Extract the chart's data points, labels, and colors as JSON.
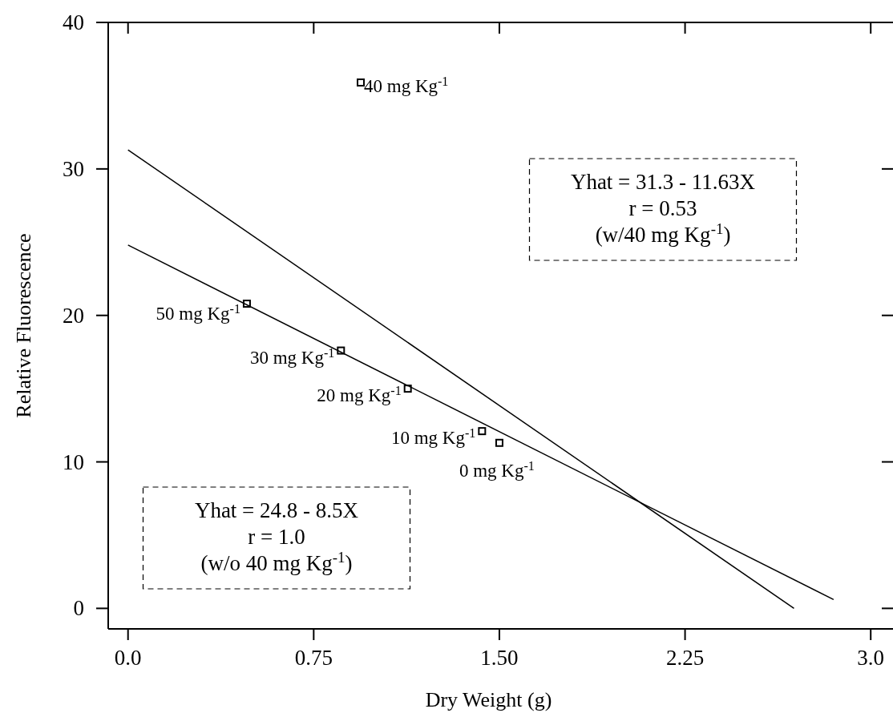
{
  "chart_data": {
    "type": "scatter",
    "xlabel": "Dry Weight (g)",
    "ylabel": "Relative Fluorescence",
    "xlim": [
      -0.08,
      3.09
    ],
    "ylim": [
      -1.4,
      40
    ],
    "xticks": [
      {
        "value": 0,
        "label": "0.0"
      },
      0.75,
      {
        "value": 1.5,
        "label": "1.50"
      },
      2.25,
      {
        "value": 3,
        "label": "3.0"
      }
    ],
    "yticks": [
      0,
      10,
      20,
      30,
      40
    ],
    "grid": false,
    "marker": "square",
    "series": [
      {
        "color": "#000000",
        "x": [
          0.48,
          0.86,
          1.13,
          1.43,
          1.5,
          0.94
        ],
        "values": [
          20.8,
          17.6,
          15.0,
          12.1,
          11.3,
          35.9
        ]
      },
      {
        "type": "line",
        "color": "#000000",
        "marker": "none",
        "line_style": "solid",
        "x": [
          0,
          2.85
        ],
        "values": [
          24.8,
          0.6
        ]
      },
      {
        "type": "line",
        "color": "#000000",
        "marker": "none",
        "line_style": "solid",
        "x": [
          0,
          2.69
        ],
        "values": [
          31.3,
          0
        ]
      }
    ],
    "annotations": [
      {
        "text": "50 mg Kg$^{-1}$",
        "x": 0.48,
        "y": 20.8
      },
      {
        "text": "30 mg Kg$^{-1}$",
        "x": 0.86,
        "y": 17.6
      },
      {
        "text": "20 mg Kg$^{-1}$",
        "x": 1.13,
        "y": 15.0
      },
      {
        "text": "10 mg Kg$^{-1}$",
        "x": 1.43,
        "y": 12.1
      },
      {
        "text": "0 mg Kg$^{-1}$",
        "x": 1.5,
        "y": 11.3
      },
      {
        "text": "40 mg Kg$^{-1}$",
        "x": 0.94,
        "y": 35.9
      },
      "Yhat = 31.3 - 11.63X\nr = 0.53\n(w/40 mg Kg$^{-1}$)",
      "Yhat = 24.8 - 8.5X\nr = 1.0\n(w/o 40 mg Kg$^{-1}$)"
    ]
  }
}
